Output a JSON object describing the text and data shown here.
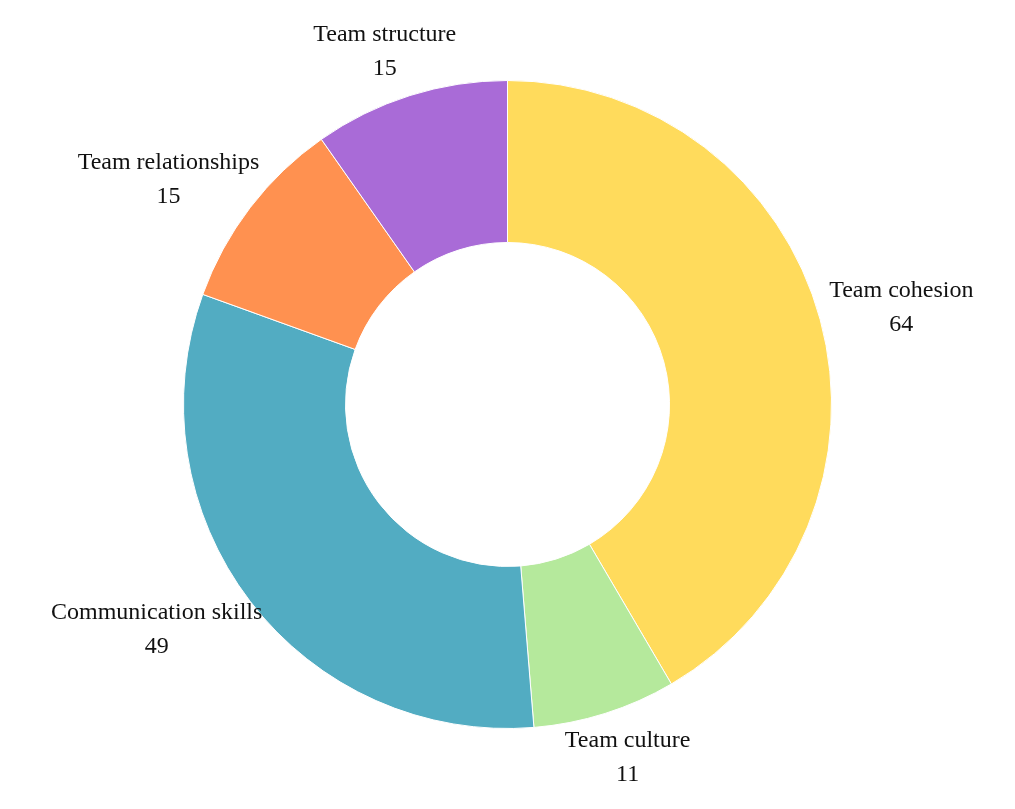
{
  "chart_data": {
    "type": "donut",
    "categories": [
      "Team cohesion",
      "Team culture",
      "Communication skills",
      "Team relationships",
      "Team structure"
    ],
    "values": [
      64,
      11,
      49,
      15,
      15
    ],
    "colors": [
      "#ffdb5c",
      "#b5e99c",
      "#52acc2",
      "#ff9150",
      "#a96bd7"
    ],
    "data_labels": true,
    "legend": false
  }
}
